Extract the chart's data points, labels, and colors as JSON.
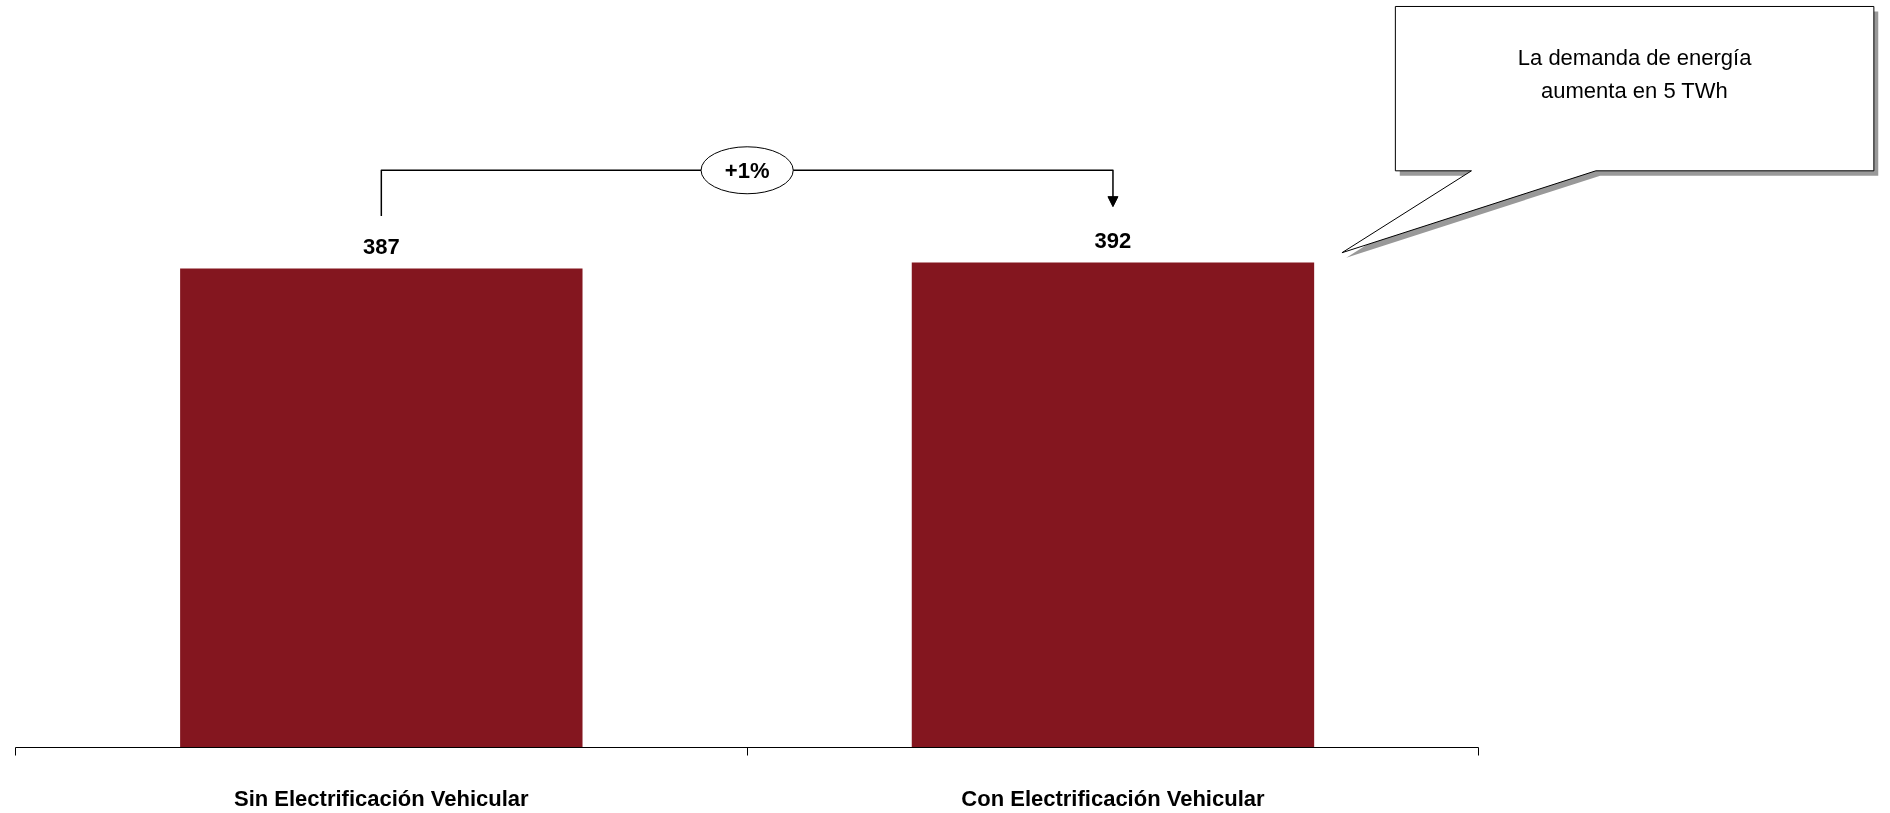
{
  "chart_data": {
    "type": "bar",
    "categories": [
      "Sin Electrificación Vehicular",
      "Con Electrificación Vehicular"
    ],
    "values": [
      387,
      392
    ],
    "color": "#84161f",
    "data_labels": true,
    "annotations": [
      "+1%",
      "La demanda de energía\naumenta en 5 TWh"
    ]
  }
}
